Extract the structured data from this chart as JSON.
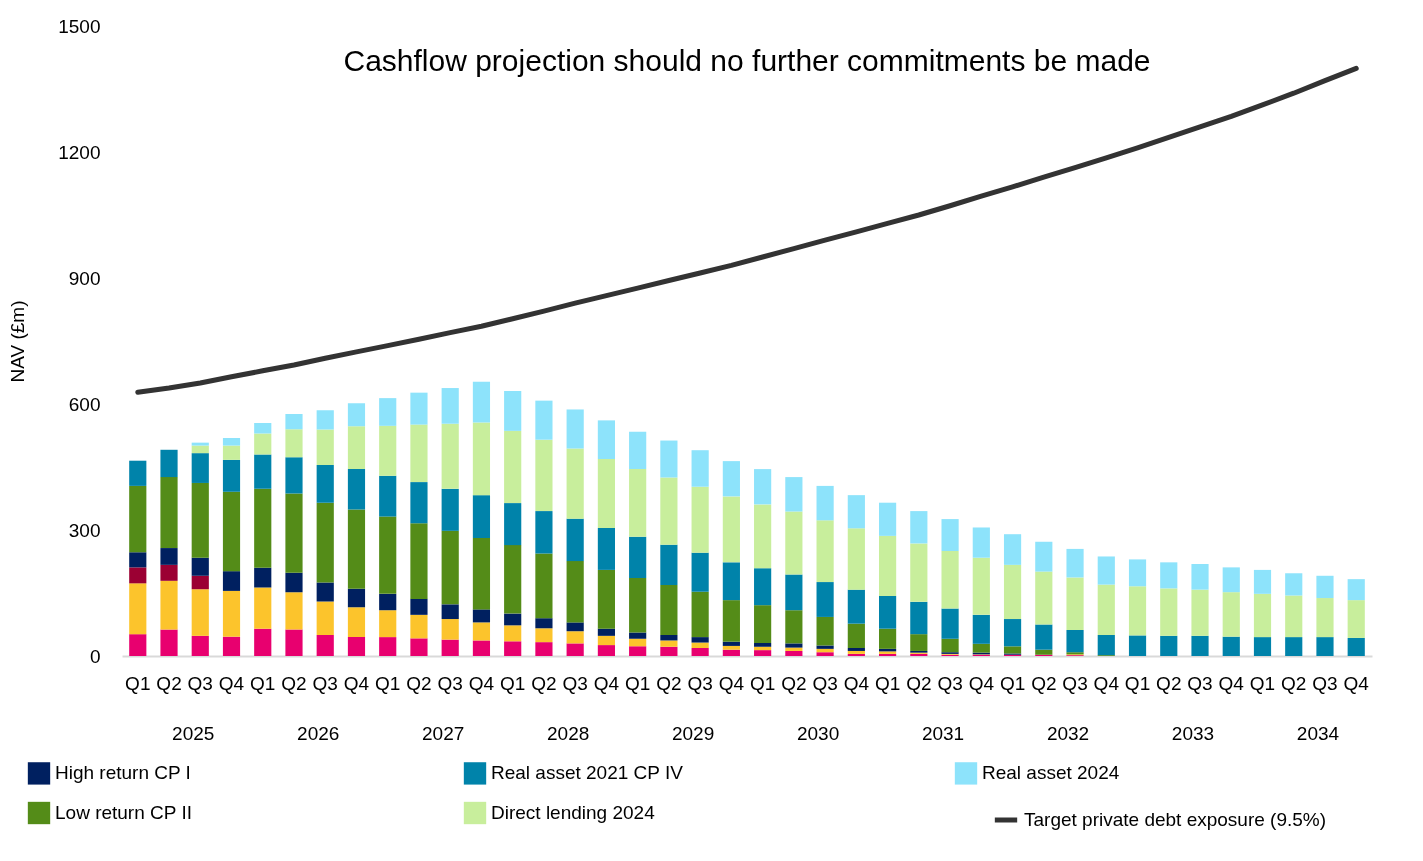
{
  "chart_data": {
    "type": "bar",
    "title": "Cashflow projection should no further commitments be made",
    "ylabel": "NAV (£m)",
    "categories": [
      "Q1",
      "Q2",
      "Q3",
      "Q4",
      "Q1",
      "Q2",
      "Q3",
      "Q4",
      "Q1",
      "Q2",
      "Q3",
      "Q4",
      "Q1",
      "Q2",
      "Q3",
      "Q4",
      "Q1",
      "Q2",
      "Q3",
      "Q4",
      "Q1",
      "Q2",
      "Q3",
      "Q4",
      "Q1",
      "Q2",
      "Q3",
      "Q4",
      "Q1",
      "Q2",
      "Q3",
      "Q4",
      "Q1",
      "Q2",
      "Q3",
      "Q4",
      "Q1",
      "Q2",
      "Q3",
      "Q4"
    ],
    "stacked": true,
    "ylim": [
      0,
      1500
    ],
    "yticks": [
      0,
      300,
      600,
      900,
      1200,
      1500
    ],
    "legend": "bottom",
    "annotations": [
      "2025",
      "2026",
      "2027",
      "2028",
      "2029",
      "2030",
      "2031",
      "2032",
      "2033",
      "2034"
    ],
    "series": [
      {
        "color": "#e8006f",
        "values": [
          52,
          63,
          48,
          46,
          65,
          63,
          50,
          45,
          45,
          42,
          39,
          37,
          35,
          33,
          30,
          26,
          23,
          22,
          19,
          15,
          14,
          12,
          9,
          5,
          5,
          5,
          3,
          3,
          3,
          3,
          2,
          null,
          null,
          null,
          null,
          null,
          null,
          null,
          null,
          null
        ]
      },
      {
        "color": "#fcc42c",
        "values": [
          121,
          116,
          111,
          109,
          98,
          89,
          80,
          71,
          64,
          56,
          49,
          43,
          38,
          33,
          29,
          22,
          18,
          15,
          13,
          9,
          8,
          8,
          8,
          7,
          6,
          3,
          2,
          1,
          null,
          null,
          2,
          null,
          null,
          null,
          null,
          null,
          null,
          null,
          null,
          null
        ]
      },
      {
        "color": "#9b0033",
        "values": [
          38,
          38,
          32,
          null,
          null,
          null,
          null,
          null,
          null,
          null,
          null,
          null,
          null,
          null,
          null,
          null,
          null,
          null,
          null,
          null,
          null,
          null,
          null,
          null,
          null,
          null,
          null,
          null,
          null,
          null,
          null,
          null,
          null,
          null,
          null,
          null,
          null,
          null,
          null,
          null
        ]
      },
      {
        "name": "High return CP I",
        "color": "#002060",
        "values": [
          36,
          40,
          43,
          47,
          47,
          46,
          45,
          44,
          39,
          38,
          35,
          31,
          28,
          24,
          21,
          17,
          15,
          13,
          13,
          10,
          9,
          10,
          8,
          7,
          6,
          4,
          4,
          4,
          3,
          null,
          null,
          null,
          null,
          null,
          null,
          null,
          null,
          null,
          null,
          null
        ]
      },
      {
        "name": "Low return CP II",
        "color": "#548c18",
        "values": [
          158,
          169,
          178,
          189,
          188,
          189,
          190,
          189,
          184,
          180,
          175,
          170,
          163,
          154,
          146,
          140,
          130,
          119,
          108,
          99,
          90,
          79,
          68,
          58,
          48,
          40,
          32,
          21,
          17,
          12,
          5,
          2,
          null,
          null,
          null,
          null,
          null,
          null,
          null,
          null
        ]
      },
      {
        "name": "Real asset 2021 CP IV",
        "color": "#0083aa",
        "values": [
          60,
          65,
          71,
          76,
          82,
          86,
          90,
          96,
          97,
          98,
          100,
          102,
          100,
          101,
          101,
          100,
          98,
          96,
          93,
          90,
          88,
          85,
          83,
          81,
          78,
          77,
          72,
          69,
          65,
          60,
          53,
          48,
          49,
          48,
          48,
          46,
          45,
          45,
          45,
          43
        ]
      },
      {
        "name": "Direct lending 2024",
        "color": "#c8ee9c",
        "values": [
          null,
          null,
          18,
          34,
          50,
          67,
          84,
          102,
          119,
          137,
          155,
          173,
          172,
          170,
          167,
          164,
          161,
          160,
          157,
          157,
          152,
          150,
          147,
          146,
          143,
          139,
          137,
          136,
          129,
          126,
          125,
          120,
          117,
          113,
          110,
          106,
          103,
          99,
          93,
          90
        ]
      },
      {
        "name": "Real asset 2024",
        "color": "#8de3fb",
        "values": [
          null,
          null,
          7,
          18,
          25,
          36,
          46,
          55,
          66,
          76,
          85,
          97,
          95,
          93,
          93,
          92,
          89,
          88,
          87,
          84,
          84,
          82,
          82,
          79,
          79,
          77,
          76,
          72,
          73,
          71,
          68,
          67,
          64,
          62,
          61,
          59,
          57,
          53,
          53,
          50
        ]
      },
      {
        "name": "Target private debt exposure (9.5%)",
        "type": "line",
        "color": "#333333",
        "values": [
          628,
          638,
          650,
          665,
          679,
          693,
          709,
          724,
          739,
          754,
          770,
          785,
          803,
          821,
          840,
          858,
          876,
          894,
          912,
          930,
          950,
          970,
          990,
          1010,
          1030,
          1050,
          1072,
          1095,
          1117,
          1140,
          1163,
          1186,
          1210,
          1235,
          1260,
          1285,
          1312,
          1340,
          1370,
          1399
        ]
      }
    ]
  }
}
